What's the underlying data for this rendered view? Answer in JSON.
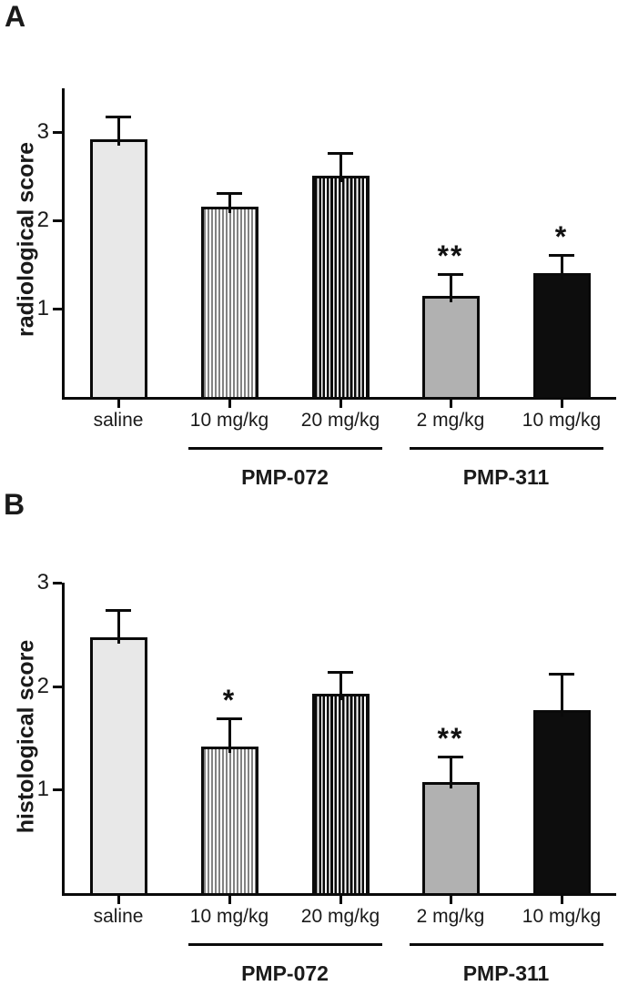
{
  "colors": {
    "axis": "#0a0a0a",
    "bar_light_gray": "#e8e8e8",
    "bar_medium_gray": "#b1b1b1",
    "bar_black": "#0d0d0d",
    "stripe_gray": "#828282",
    "background": "#ffffff"
  },
  "chart_data": [
    {
      "type": "bar",
      "panel_label": "A",
      "title": "",
      "xlabel": "",
      "ylabel": "radiological score",
      "ylim": [
        0,
        3.5
      ],
      "yticks": [
        1,
        2,
        3
      ],
      "grid": false,
      "legend": false,
      "categories": [
        "saline",
        "10 mg/kg",
        "20 mg/kg",
        "2 mg/kg",
        "10 mg/kg"
      ],
      "values": [
        2.92,
        2.16,
        2.51,
        1.15,
        1.4
      ],
      "errors": [
        0.27,
        0.16,
        0.27,
        0.25,
        0.22
      ],
      "significance": [
        "",
        "",
        "",
        "**",
        "*"
      ],
      "bar_styles": [
        "solid-lightgray",
        "thin-gray-vertical-stripes",
        "thick-black-vertical-stripes",
        "solid-gray",
        "solid-black"
      ],
      "group_labels": [
        {
          "label": "PMP-072",
          "bars": [
            1,
            2
          ]
        },
        {
          "label": "PMP-311",
          "bars": [
            3,
            4
          ]
        }
      ]
    },
    {
      "type": "bar",
      "panel_label": "B",
      "title": "",
      "xlabel": "",
      "ylabel": "histological score",
      "ylim": [
        0,
        3.0
      ],
      "yticks": [
        1,
        2,
        3
      ],
      "grid": false,
      "legend": false,
      "categories": [
        "saline",
        "10 mg/kg",
        "20 mg/kg",
        "2 mg/kg",
        "10 mg/kg"
      ],
      "values": [
        2.47,
        1.42,
        1.93,
        1.07,
        1.77
      ],
      "errors": [
        0.27,
        0.28,
        0.22,
        0.26,
        0.36
      ],
      "significance": [
        "",
        "*",
        "",
        "**",
        ""
      ],
      "bar_styles": [
        "solid-lightgray",
        "thin-gray-vertical-stripes",
        "thick-black-vertical-stripes",
        "solid-gray",
        "solid-black"
      ],
      "group_labels": [
        {
          "label": "PMP-072",
          "bars": [
            1,
            2
          ]
        },
        {
          "label": "PMP-311",
          "bars": [
            3,
            4
          ]
        }
      ]
    }
  ]
}
